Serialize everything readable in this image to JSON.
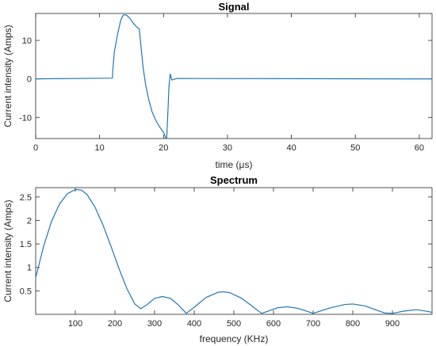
{
  "chart_data": [
    {
      "type": "line",
      "title": "Signal",
      "xlabel": "time (μs)",
      "ylabel": "Current intensity (Amps)",
      "xlim": [
        0,
        62
      ],
      "ylim": [
        -15.5,
        17
      ],
      "xticks": [
        0,
        10,
        20,
        30,
        40,
        50,
        60
      ],
      "yticks": [
        -10,
        0,
        10
      ],
      "grid": false,
      "color": "#1f77b4",
      "series": [
        {
          "x": [
            0,
            12,
            12.05,
            12.3,
            12.8,
            13.3,
            13.7,
            14.2,
            14.8,
            15.3,
            15.8,
            16.2,
            16.5,
            16.8,
            17.2,
            17.7,
            18.2,
            18.7,
            19.2,
            19.7,
            20.1,
            20.3,
            20.5,
            20.7,
            20.85,
            21.05,
            21.3,
            22,
            62
          ],
          "y": [
            0,
            0.2,
            2,
            7,
            11.5,
            15.2,
            16.6,
            16.6,
            15.6,
            14.4,
            13.5,
            13,
            8,
            3,
            -1.5,
            -5.5,
            -8.5,
            -10.5,
            -12,
            -13.2,
            -14.2,
            -15.2,
            -15.3,
            -8,
            -2,
            1.3,
            -0.3,
            0.1,
            0
          ]
        }
      ]
    },
    {
      "type": "line",
      "title": "Spectrum",
      "xlabel": "frequency (KHz)",
      "ylabel": "Current intensity (Amps)",
      "xlim": [
        0,
        1000
      ],
      "ylim": [
        0,
        2.7
      ],
      "xticks": [
        100,
        200,
        300,
        400,
        500,
        600,
        700,
        800,
        900
      ],
      "yticks": [
        0.5,
        1,
        1.5,
        2,
        2.5
      ],
      "grid": false,
      "color": "#1f77b4",
      "series": [
        {
          "x": [
            0,
            20,
            40,
            60,
            80,
            100,
            115,
            130,
            150,
            170,
            190,
            210,
            230,
            250,
            265,
            280,
            300,
            320,
            340,
            360,
            380,
            400,
            430,
            460,
            475,
            490,
            520,
            550,
            570,
            590,
            610,
            635,
            660,
            680,
            700,
            740,
            780,
            800,
            830,
            860,
            880,
            900,
            930,
            960,
            990,
            1000
          ],
          "y": [
            0.78,
            1.45,
            1.98,
            2.35,
            2.57,
            2.66,
            2.65,
            2.55,
            2.28,
            1.9,
            1.45,
            0.98,
            0.55,
            0.22,
            0.12,
            0.2,
            0.34,
            0.38,
            0.34,
            0.2,
            0.02,
            0.15,
            0.36,
            0.47,
            0.48,
            0.46,
            0.34,
            0.15,
            0.02,
            0.08,
            0.14,
            0.16,
            0.13,
            0.08,
            0.02,
            0.13,
            0.21,
            0.22,
            0.18,
            0.09,
            0.03,
            0.02,
            0.07,
            0.1,
            0.06,
            0.04
          ]
        }
      ]
    }
  ]
}
